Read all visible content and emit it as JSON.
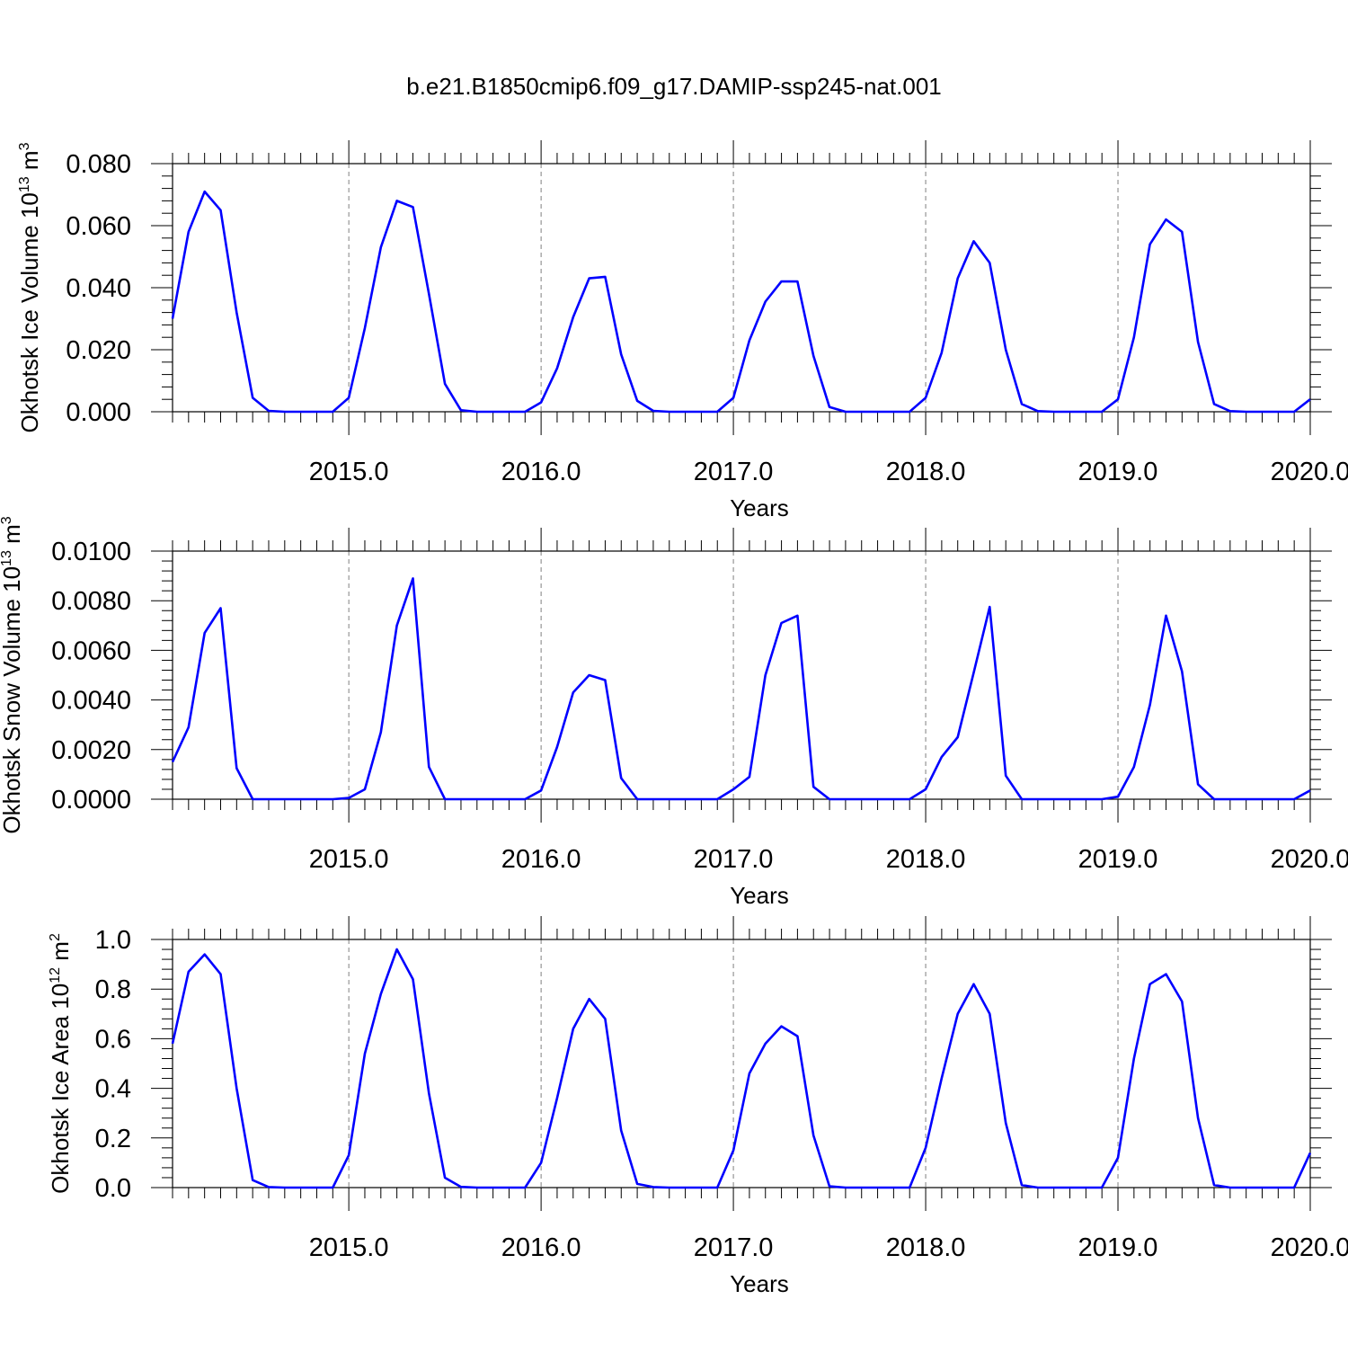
{
  "title": "b.e21.B1850cmip6.f09_g17.DAMIP-ssp245-nat.001",
  "colors": {
    "line": "#0000ff",
    "axis": "#000000",
    "grid": "#808080"
  },
  "chart_data": [
    {
      "type": "line",
      "xlabel": "Years",
      "ylabel": {
        "main": "Okhotsk Ice Volume 10",
        "exp": "13",
        "unit": " m",
        "unit_exp": "3"
      },
      "xlim": [
        2014.0833,
        2020.0
      ],
      "ylim": [
        0,
        0.08
      ],
      "xticks": [
        2015,
        2016,
        2017,
        2018,
        2019,
        2020
      ],
      "xtick_labels": [
        "2015.0",
        "2016.0",
        "2017.0",
        "2018.0",
        "2019.0",
        "2020.0"
      ],
      "yticks": [
        0,
        0.02,
        0.04,
        0.06,
        0.08
      ],
      "ytick_labels": [
        "0.000",
        "0.020",
        "0.040",
        "0.060",
        "0.080"
      ],
      "x_start": 2014.0833,
      "x_step": 0.08333,
      "values": [
        0.03,
        0.058,
        0.071,
        0.065,
        0.032,
        0.0045,
        0.0003,
        0.0,
        0.0,
        0.0,
        0.0,
        0.0045,
        0.027,
        0.053,
        0.068,
        0.066,
        0.038,
        0.009,
        0.0005,
        0.0,
        0.0,
        0.0,
        0.0,
        0.003,
        0.014,
        0.0305,
        0.043,
        0.0435,
        0.0185,
        0.0035,
        0.0003,
        0.0,
        0.0,
        0.0,
        0.0,
        0.0045,
        0.023,
        0.0355,
        0.042,
        0.042,
        0.018,
        0.0015,
        0.0,
        0.0,
        0.0,
        0.0,
        0.0,
        0.0045,
        0.019,
        0.043,
        0.055,
        0.048,
        0.02,
        0.0025,
        0.0002,
        0.0,
        0.0,
        0.0,
        0.0,
        0.004,
        0.024,
        0.054,
        0.062,
        0.058,
        0.0225,
        0.0025,
        0.0002,
        0.0,
        0.0,
        0.0,
        0.0,
        0.004
      ],
      "grid": "dashed vertical lines at year ticks",
      "legend": "none"
    },
    {
      "type": "line",
      "xlabel": "Years",
      "ylabel": {
        "main": "Okhotsk Snow Volume 10",
        "exp": "13",
        "unit": " m",
        "unit_exp": "3"
      },
      "xlim": [
        2014.0833,
        2020.0
      ],
      "ylim": [
        0,
        0.01
      ],
      "xticks": [
        2015,
        2016,
        2017,
        2018,
        2019,
        2020
      ],
      "xtick_labels": [
        "2015.0",
        "2016.0",
        "2017.0",
        "2018.0",
        "2019.0",
        "2020.0"
      ],
      "yticks": [
        0,
        0.002,
        0.004,
        0.006,
        0.008,
        0.01
      ],
      "ytick_labels": [
        "0.0000",
        "0.0020",
        "0.0040",
        "0.0060",
        "0.0080",
        "0.0100"
      ],
      "x_start": 2014.0833,
      "x_step": 0.08333,
      "values": [
        0.0015,
        0.0029,
        0.0067,
        0.0077,
        0.00125,
        0.0,
        0.0,
        0.0,
        0.0,
        0.0,
        0.0,
        5e-05,
        0.0004,
        0.0027,
        0.007,
        0.0089,
        0.0013,
        0.0,
        0.0,
        0.0,
        0.0,
        0.0,
        0.0,
        0.00035,
        0.0021,
        0.0043,
        0.005,
        0.0048,
        0.00085,
        0.0,
        0.0,
        0.0,
        0.0,
        0.0,
        0.0,
        0.0004,
        0.0009,
        0.005,
        0.0071,
        0.0074,
        0.0005,
        0.0,
        0.0,
        0.0,
        0.0,
        0.0,
        0.0,
        0.0004,
        0.0017,
        0.0025,
        0.0051,
        0.00775,
        0.00095,
        0.0,
        0.0,
        0.0,
        0.0,
        0.0,
        0.0,
        0.0001,
        0.0013,
        0.0038,
        0.0074,
        0.00515,
        0.0006,
        0.0,
        0.0,
        0.0,
        0.0,
        0.0,
        0.0,
        0.00035
      ],
      "grid": "dashed vertical lines at year ticks",
      "legend": "none"
    },
    {
      "type": "line",
      "xlabel": "Years",
      "ylabel": {
        "main": "Okhotsk Ice Area 10",
        "exp": "12",
        "unit": " m",
        "unit_exp": "2"
      },
      "xlim": [
        2014.0833,
        2020.0
      ],
      "ylim": [
        0,
        1.0
      ],
      "xticks": [
        2015,
        2016,
        2017,
        2018,
        2019,
        2020
      ],
      "xtick_labels": [
        "2015.0",
        "2016.0",
        "2017.0",
        "2018.0",
        "2019.0",
        "2020.0"
      ],
      "yticks": [
        0,
        0.2,
        0.4,
        0.6,
        0.8,
        1.0
      ],
      "ytick_labels": [
        "0.0",
        "0.2",
        "0.4",
        "0.6",
        "0.8",
        "1.0"
      ],
      "x_start": 2014.0833,
      "x_step": 0.08333,
      "values": [
        0.58,
        0.87,
        0.94,
        0.86,
        0.4,
        0.03,
        0.002,
        0.0,
        0.0,
        0.0,
        0.0,
        0.13,
        0.54,
        0.78,
        0.96,
        0.84,
        0.38,
        0.04,
        0.003,
        0.0,
        0.0,
        0.0,
        0.0,
        0.1,
        0.36,
        0.64,
        0.76,
        0.68,
        0.23,
        0.015,
        0.002,
        0.0,
        0.0,
        0.0,
        0.0,
        0.15,
        0.46,
        0.58,
        0.65,
        0.61,
        0.21,
        0.005,
        0.0,
        0.0,
        0.0,
        0.0,
        0.0,
        0.16,
        0.44,
        0.7,
        0.82,
        0.7,
        0.26,
        0.01,
        0.0,
        0.0,
        0.0,
        0.0,
        0.0,
        0.12,
        0.52,
        0.82,
        0.86,
        0.75,
        0.28,
        0.01,
        0.0,
        0.0,
        0.0,
        0.0,
        0.0,
        0.14
      ],
      "grid": "dashed vertical lines at year ticks",
      "legend": "none"
    }
  ]
}
